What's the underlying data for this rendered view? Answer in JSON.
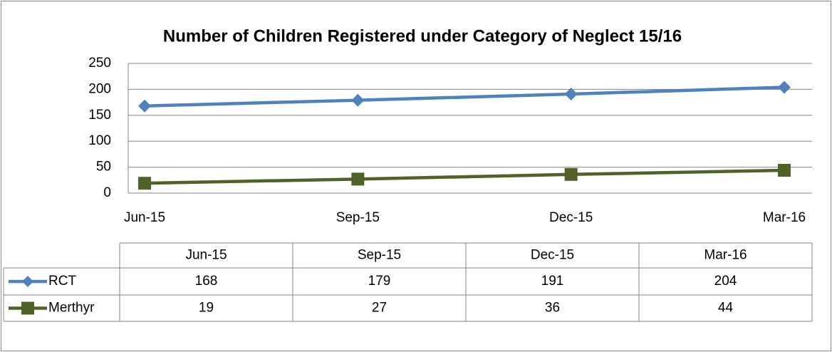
{
  "chart_data": {
    "type": "line",
    "title": "Number of Children Registered under Category of Neglect 15/16",
    "categories": [
      "Jun-15",
      "Sep-15",
      "Dec-15",
      "Mar-16"
    ],
    "series": [
      {
        "name": "RCT",
        "color": "#4f81bd",
        "marker": "diamond",
        "values": [
          168,
          179,
          191,
          204
        ]
      },
      {
        "name": "Merthyr",
        "color": "#4f6228",
        "marker": "square",
        "values": [
          19,
          27,
          36,
          44
        ]
      }
    ],
    "ylim": [
      0,
      250
    ],
    "yticks": [
      0,
      50,
      100,
      150,
      200,
      250
    ],
    "grid": true,
    "data_table": true
  }
}
